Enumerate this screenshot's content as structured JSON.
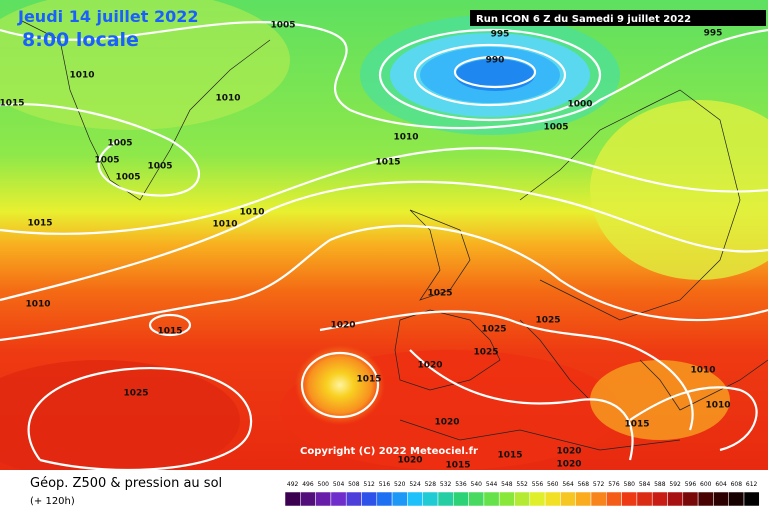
{
  "header": {
    "date": "Jeudi 14 juillet 2022",
    "time": "8:00 locale"
  },
  "run": "Run ICON 6 Z du Samedi 9 juillet 2022",
  "isobars": [
    "1005",
    "1010",
    "1015",
    "1010",
    "1005",
    "1005",
    "1005",
    "1005",
    "1010",
    "1010",
    "1015",
    "1010",
    "1015",
    "1025",
    "1020",
    "1015",
    "1025",
    "1025",
    "1025",
    "1025",
    "1020",
    "1020",
    "1020",
    "1015",
    "1015",
    "1020",
    "1020",
    "1015",
    "1010",
    "1010",
    "1015",
    "1010",
    "995",
    "990",
    "995",
    "1000",
    "1005"
  ],
  "copyright": "Copyright (C) 2022 Meteociel.fr",
  "legend": {
    "title": "Géop. Z500 & pression au sol",
    "lead": "(+ 120h)",
    "scale": [
      492,
      496,
      500,
      504,
      508,
      512,
      516,
      520,
      524,
      528,
      532,
      536,
      540,
      544,
      548,
      552,
      556,
      560,
      564,
      568,
      572,
      576,
      580,
      584,
      588,
      592,
      596,
      600,
      604,
      608,
      612
    ]
  }
}
